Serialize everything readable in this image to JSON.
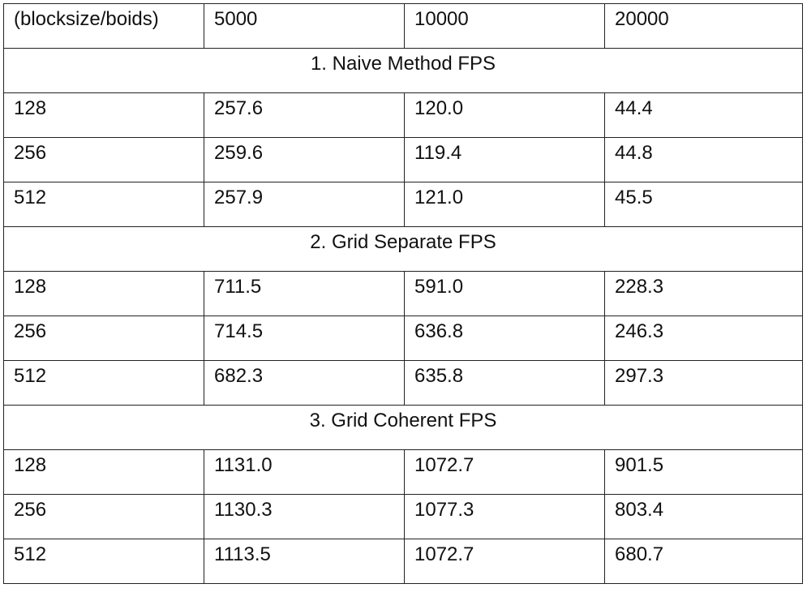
{
  "table": {
    "header": [
      "(blocksize/boids)",
      "5000",
      "10000",
      "20000"
    ],
    "sections": [
      {
        "title": "1. Naive Method FPS",
        "rows": [
          [
            "128",
            "257.6",
            "120.0",
            "44.4"
          ],
          [
            "256",
            "259.6",
            "119.4",
            "44.8"
          ],
          [
            "512",
            "257.9",
            "121.0",
            "45.5"
          ]
        ]
      },
      {
        "title": "2. Grid Separate FPS",
        "rows": [
          [
            "128",
            "711.5",
            "591.0",
            "228.3"
          ],
          [
            "256",
            "714.5",
            "636.8",
            "246.3"
          ],
          [
            "512",
            "682.3",
            "635.8",
            "297.3"
          ]
        ]
      },
      {
        "title": "3. Grid Coherent FPS",
        "rows": [
          [
            "128",
            "1131.0",
            "1072.7",
            "901.5"
          ],
          [
            "256",
            "1130.3",
            "1077.3",
            "803.4"
          ],
          [
            "512",
            "1113.5",
            "1072.7",
            "680.7"
          ]
        ]
      }
    ]
  }
}
